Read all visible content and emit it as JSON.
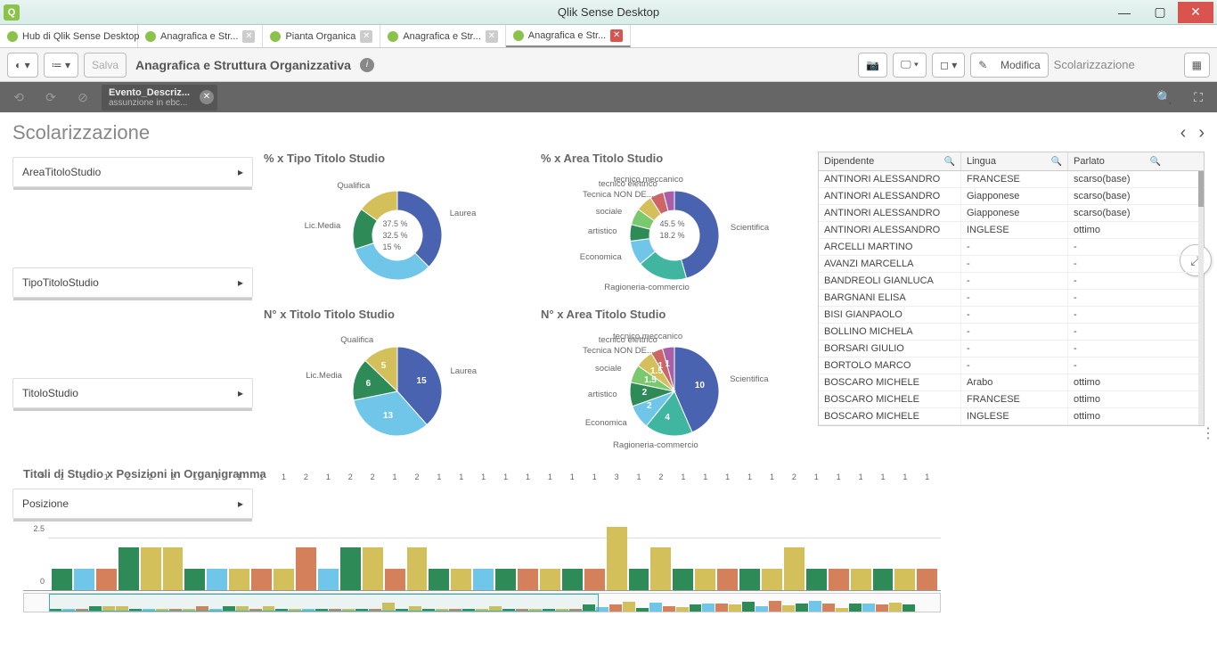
{
  "window": {
    "title": "Qlik Sense Desktop",
    "icon_label": "Q"
  },
  "tabs": [
    {
      "label": "Hub di Qlik Sense Desktop",
      "closable": false
    },
    {
      "label": "Anagrafica e Str...",
      "closable": true
    },
    {
      "label": "Pianta Organica",
      "closable": true
    },
    {
      "label": "Anagrafica e Str...",
      "closable": true
    },
    {
      "label": "Anagrafica e Str...",
      "closable": true,
      "active": true,
      "close_red": true
    }
  ],
  "toolbar": {
    "save": "Salva",
    "sheet_title": "Anagrafica e Struttura Organizzativa",
    "edit": "Modifica",
    "projection": "Scolarizzazione"
  },
  "selection": {
    "chip_title": "Evento_Descriz...",
    "chip_value": "assunzione in ebc..."
  },
  "page": {
    "title": "Scolarizzazione"
  },
  "filters": [
    "AreaTitoloStudio",
    "TipoTitoloStudio",
    "TitoloStudio",
    "Posizione"
  ],
  "charts": {
    "donut1": {
      "title": "% x Tipo Titolo Studio",
      "slices": [
        {
          "label": "Laurea",
          "value": 37.5,
          "color": "#4a63b0"
        },
        {
          "label": "",
          "value": 32.5,
          "color": "#6fc6e8"
        },
        {
          "label": "Lic.Media",
          "value": 15,
          "color": "#2e8b57"
        },
        {
          "label": "Qualifica",
          "value": 15,
          "color": "#d4c05a"
        }
      ],
      "center_labels": [
        "37.5 %",
        "32.5 %",
        "15 %"
      ]
    },
    "donut2": {
      "title": "% x Area Titolo Studio",
      "slices": [
        {
          "label": "Scientifica",
          "value": 45.5,
          "color": "#4a63b0"
        },
        {
          "label": "Ragioneria-commercio",
          "value": 18.2,
          "color": "#40b5a0"
        },
        {
          "label": "Economica",
          "value": 9,
          "color": "#6fc6e8"
        },
        {
          "label": "artistico",
          "value": 6,
          "color": "#2e8b57"
        },
        {
          "label": "sociale",
          "value": 6,
          "color": "#7bc96f"
        },
        {
          "label": "Tecnica NON DE...",
          "value": 6,
          "color": "#d4c05a"
        },
        {
          "label": "tecnico elettrico",
          "value": 5,
          "color": "#c66"
        },
        {
          "label": "tecnico meccanico",
          "value": 4,
          "color": "#a85fa8"
        }
      ],
      "center_labels": [
        "45.5 %",
        "18.2 %"
      ]
    },
    "pie1": {
      "title": "N° x Titolo Titolo Studio",
      "slices": [
        {
          "label": "Laurea",
          "value": 15,
          "color": "#4a63b0"
        },
        {
          "label": "",
          "value": 13,
          "color": "#6fc6e8"
        },
        {
          "label": "Lic.Media",
          "value": 6,
          "color": "#2e8b57"
        },
        {
          "label": "Qualifica",
          "value": 5,
          "color": "#d4c05a"
        }
      ]
    },
    "pie2": {
      "title": "N° x Area Titolo Studio",
      "slices": [
        {
          "label": "Scientifica",
          "value": 10,
          "color": "#4a63b0"
        },
        {
          "label": "Ragioneria-commercio",
          "value": 4,
          "color": "#40b5a0"
        },
        {
          "label": "Economica",
          "value": 2,
          "color": "#6fc6e8"
        },
        {
          "label": "artistico",
          "value": 2,
          "color": "#2e8b57"
        },
        {
          "label": "sociale",
          "value": 1.5,
          "color": "#7bc96f"
        },
        {
          "label": "Tecnica NON DE...",
          "value": 1.5,
          "color": "#d4c05a"
        },
        {
          "label": "tecnico elettrico",
          "value": 1,
          "color": "#c66"
        },
        {
          "label": "tecnico meccanico",
          "value": 1,
          "color": "#a85fa8"
        }
      ]
    }
  },
  "table": {
    "columns": [
      "Dipendente",
      "Lingua",
      "Parlato"
    ],
    "rows": [
      [
        "ANTINORI ALESSANDRO",
        "FRANCESE",
        "scarso(base)"
      ],
      [
        "ANTINORI ALESSANDRO",
        "Giapponese",
        "scarso(base)"
      ],
      [
        "ANTINORI ALESSANDRO",
        "Giapponese",
        "scarso(base)"
      ],
      [
        "ANTINORI ALESSANDRO",
        "INGLESE",
        "ottimo"
      ],
      [
        "ARCELLI MARTINO",
        "-",
        "-"
      ],
      [
        "AVANZI MARCELLA",
        "-",
        "-"
      ],
      [
        "BANDREOLI GIANLUCA",
        "-",
        "-"
      ],
      [
        "BARGNANI ELISA",
        "-",
        "-"
      ],
      [
        "BISI GIANPAOLO",
        "-",
        "-"
      ],
      [
        "BOLLINO MICHELA",
        "-",
        "-"
      ],
      [
        "BORSARI GIULIO",
        "-",
        "-"
      ],
      [
        "BORTOLO MARCO",
        "-",
        "-"
      ],
      [
        "BOSCARO MICHELE",
        "Arabo",
        "ottimo"
      ],
      [
        "BOSCARO MICHELE",
        "FRANCESE",
        "ottimo"
      ],
      [
        "BOSCARO MICHELE",
        "INGLESE",
        "ottimo"
      ]
    ],
    "tooltip": "ottimo",
    "tooltip_row": 4
  },
  "barchart": {
    "title": "Titoli di Studio x Posizioni in Organigramma",
    "ylim": [
      0,
      5
    ],
    "yticks": [
      0,
      2.5,
      5
    ],
    "colors": [
      "#2e8b57",
      "#6fc6e8",
      "#d4805a",
      "#d4c05a",
      "#4a63b0",
      "#40b5a0",
      "#c66",
      "#a85fa8"
    ],
    "bars": [
      {
        "v": 1,
        "c": 0
      },
      {
        "v": 1,
        "c": 1
      },
      {
        "v": 1,
        "c": 2
      },
      {
        "v": 2,
        "c": 0
      },
      {
        "v": 2,
        "c": 3
      },
      {
        "v": 2,
        "c": 3
      },
      {
        "v": 1,
        "c": 0
      },
      {
        "v": 1,
        "c": 1
      },
      {
        "v": 1,
        "c": 3
      },
      {
        "v": 1,
        "c": 2
      },
      {
        "v": 1,
        "c": 3
      },
      {
        "v": 2,
        "c": 2
      },
      {
        "v": 1,
        "c": 1
      },
      {
        "v": 2,
        "c": 0
      },
      {
        "v": 2,
        "c": 3
      },
      {
        "v": 1,
        "c": 2
      },
      {
        "v": 2,
        "c": 3
      },
      {
        "v": 1,
        "c": 0
      },
      {
        "v": 1,
        "c": 3
      },
      {
        "v": 1,
        "c": 1
      },
      {
        "v": 1,
        "c": 0
      },
      {
        "v": 1,
        "c": 2
      },
      {
        "v": 1,
        "c": 3
      },
      {
        "v": 1,
        "c": 0
      },
      {
        "v": 1,
        "c": 2
      },
      {
        "v": 3,
        "c": 3
      },
      {
        "v": 1,
        "c": 0
      },
      {
        "v": 2,
        "c": 3
      },
      {
        "v": 1,
        "c": 0
      },
      {
        "v": 1,
        "c": 3
      },
      {
        "v": 1,
        "c": 2
      },
      {
        "v": 1,
        "c": 0
      },
      {
        "v": 1,
        "c": 3
      },
      {
        "v": 2,
        "c": 3
      },
      {
        "v": 1,
        "c": 0
      },
      {
        "v": 1,
        "c": 2
      },
      {
        "v": 1,
        "c": 3
      },
      {
        "v": 1,
        "c": 0
      },
      {
        "v": 1,
        "c": 3
      },
      {
        "v": 1,
        "c": 2
      }
    ]
  }
}
